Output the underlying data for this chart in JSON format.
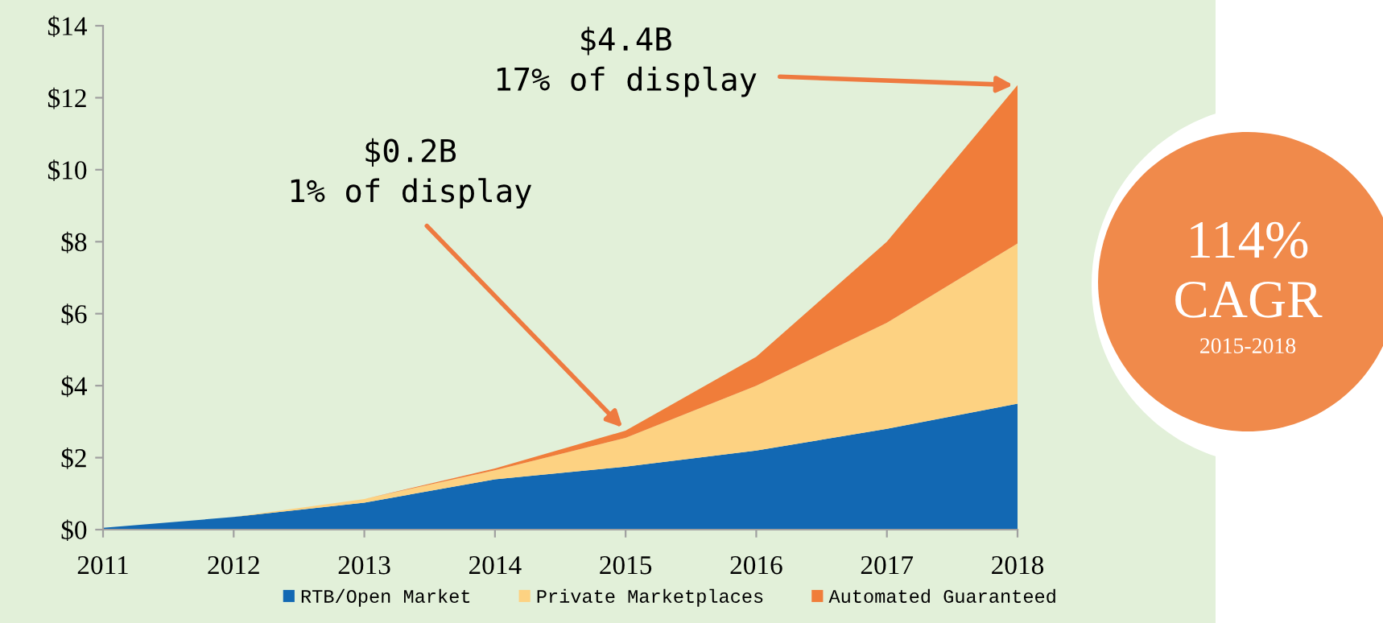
{
  "chart_data": {
    "type": "area",
    "stacked": true,
    "categories": [
      "2011",
      "2012",
      "2013",
      "2014",
      "2015",
      "2016",
      "2017",
      "2018"
    ],
    "series": [
      {
        "name": "RTB/Open Market",
        "color": "#1268b3",
        "values": [
          0.05,
          0.35,
          0.75,
          1.4,
          1.75,
          2.2,
          2.8,
          3.5
        ]
      },
      {
        "name": "Private Marketplaces",
        "color": "#fdd282",
        "values": [
          0,
          0,
          0.1,
          0.25,
          0.8,
          1.8,
          2.95,
          4.45
        ]
      },
      {
        "name": "Automated Guaranteed",
        "color": "#f07d3a",
        "values": [
          0,
          0,
          0,
          0.05,
          0.2,
          0.8,
          2.25,
          4.4
        ]
      }
    ],
    "ylim": [
      0,
      14
    ],
    "yticks": [
      {
        "value": 0,
        "label": "$0"
      },
      {
        "value": 2,
        "label": "$2"
      },
      {
        "value": 4,
        "label": "$4"
      },
      {
        "value": 6,
        "label": "$6"
      },
      {
        "value": 8,
        "label": "$8"
      },
      {
        "value": 10,
        "label": "$10"
      },
      {
        "value": 12,
        "label": "$12"
      },
      {
        "value": 14,
        "label": "$14"
      }
    ],
    "annotations": [
      {
        "text": "$0.2B\n1% of display",
        "x": "2015",
        "y": 2.75
      },
      {
        "text": "$4.4B\n17% of display",
        "x": "2018",
        "y": 12.35
      },
      "114%",
      "CAGR",
      "2015-2018"
    ],
    "legend": "bottom",
    "grid": false
  }
}
